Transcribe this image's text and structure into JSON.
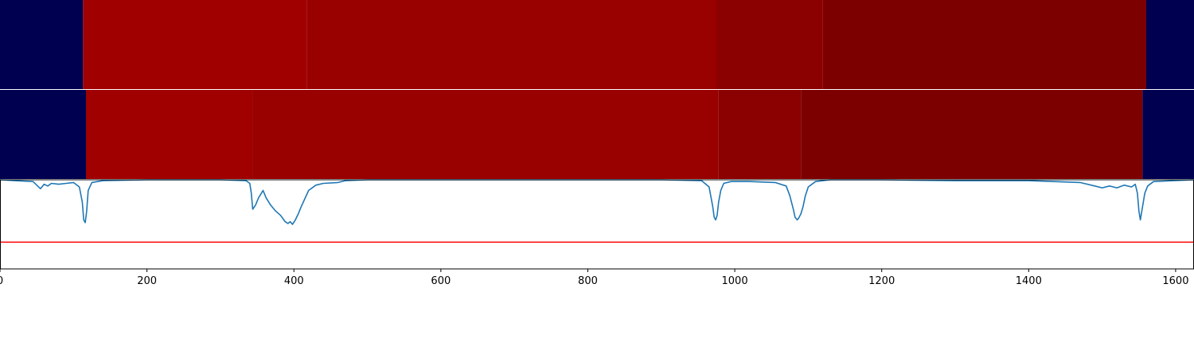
{
  "colors": {
    "background_class": "#000050",
    "curve": "#1f77b4",
    "threshold": "#ff0000",
    "axis": "#000000"
  },
  "chart_data": {
    "type": "heatmap",
    "xlim": [
      0,
      1625
    ],
    "x_ticks": [
      0,
      200,
      400,
      600,
      800,
      1000,
      1200,
      1400,
      1600
    ],
    "grid": false,
    "legend": "none",
    "tracks": [
      {
        "segments": [
          {
            "start": 0,
            "end": 113,
            "color": "#000050"
          },
          {
            "start": 113,
            "end": 418,
            "color": "#a10000"
          },
          {
            "start": 418,
            "end": 975,
            "color": "#990000"
          },
          {
            "start": 975,
            "end": 1120,
            "color": "#8b0000"
          },
          {
            "start": 1120,
            "end": 1560,
            "color": "#7d0000"
          },
          {
            "start": 1560,
            "end": 1625,
            "color": "#000050"
          }
        ]
      },
      {
        "segments": [
          {
            "start": 0,
            "end": 117,
            "color": "#000050"
          },
          {
            "start": 117,
            "end": 344,
            "color": "#a10000"
          },
          {
            "start": 344,
            "end": 978,
            "color": "#990000"
          },
          {
            "start": 978,
            "end": 1090,
            "color": "#8b0000"
          },
          {
            "start": 1090,
            "end": 1555,
            "color": "#7d0000"
          },
          {
            "start": 1555,
            "end": 1625,
            "color": "#000050"
          }
        ]
      }
    ],
    "line_series": {
      "ylim": [
        0,
        1
      ],
      "x": [
        0,
        20,
        45,
        55,
        60,
        65,
        70,
        80,
        90,
        100,
        108,
        112,
        114,
        116,
        118,
        120,
        125,
        140,
        200,
        300,
        335,
        340,
        342,
        344,
        348,
        352,
        358,
        362,
        368,
        375,
        382,
        388,
        392,
        395,
        398,
        402,
        406,
        410,
        420,
        430,
        440,
        460,
        470,
        500,
        600,
        700,
        800,
        900,
        955,
        965,
        970,
        972,
        974,
        976,
        978,
        981,
        985,
        995,
        1020,
        1055,
        1070,
        1075,
        1080,
        1082,
        1085,
        1087,
        1090,
        1093,
        1096,
        1100,
        1110,
        1130,
        1200,
        1300,
        1400,
        1470,
        1490,
        1500,
        1510,
        1520,
        1530,
        1540,
        1545,
        1548,
        1550,
        1552,
        1555,
        1558,
        1562,
        1570,
        1625
      ],
      "y": [
        1.0,
        0.99,
        0.98,
        0.9,
        0.95,
        0.93,
        0.96,
        0.95,
        0.96,
        0.97,
        0.92,
        0.75,
        0.55,
        0.52,
        0.65,
        0.88,
        0.97,
        0.99,
        1.0,
        1.0,
        0.99,
        0.96,
        0.85,
        0.67,
        0.72,
        0.8,
        0.88,
        0.8,
        0.72,
        0.65,
        0.6,
        0.53,
        0.51,
        0.53,
        0.5,
        0.55,
        0.62,
        0.7,
        0.88,
        0.94,
        0.96,
        0.97,
        0.99,
        1.0,
        1.0,
        1.0,
        1.0,
        1.0,
        0.99,
        0.92,
        0.7,
        0.58,
        0.55,
        0.6,
        0.75,
        0.88,
        0.96,
        0.98,
        0.98,
        0.97,
        0.93,
        0.82,
        0.66,
        0.58,
        0.55,
        0.57,
        0.62,
        0.7,
        0.82,
        0.92,
        0.98,
        1.0,
        1.0,
        0.99,
        0.99,
        0.97,
        0.93,
        0.91,
        0.93,
        0.91,
        0.94,
        0.92,
        0.95,
        0.85,
        0.65,
        0.55,
        0.7,
        0.85,
        0.93,
        0.98,
        1.0
      ],
      "threshold": 0.3
    }
  }
}
